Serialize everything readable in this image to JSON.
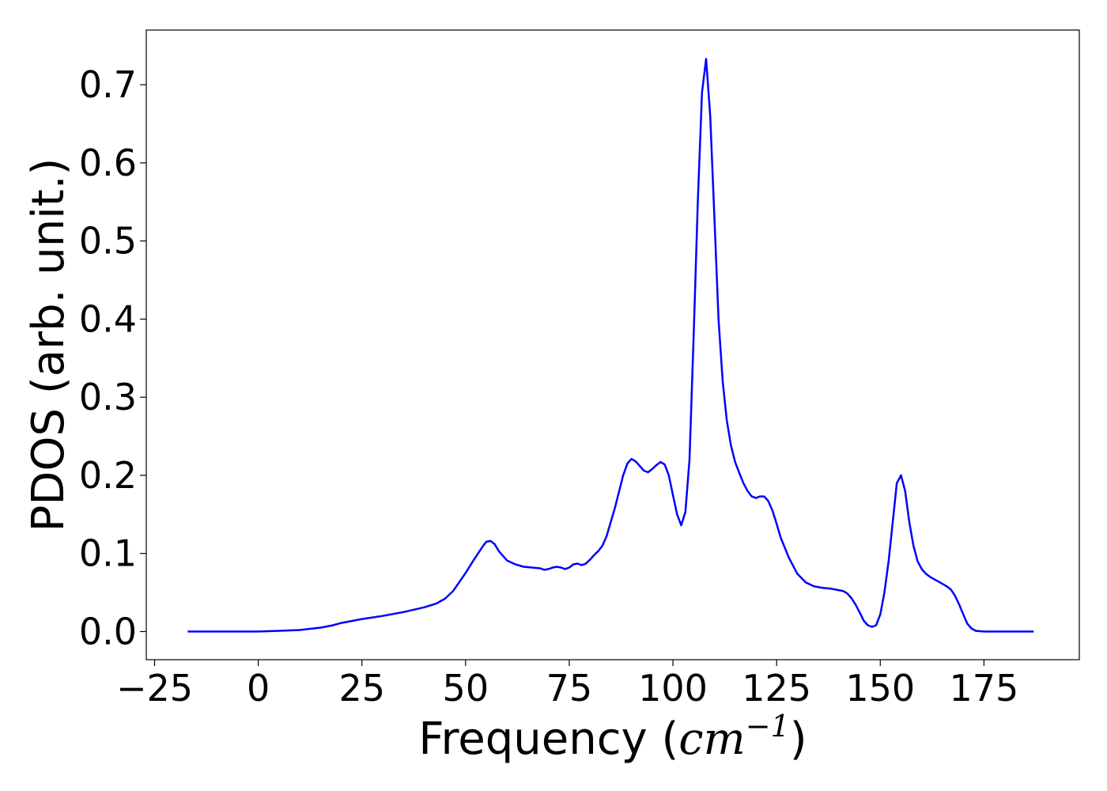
{
  "chart_data": {
    "type": "line",
    "title": "",
    "xlabel_text": "Frequency (",
    "xlabel_math": "cm",
    "xlabel_sup": "−1",
    "xlabel_close": ")",
    "ylabel": "PDOS (arb. unit.)",
    "xlim": [
      -27,
      198
    ],
    "ylim": [
      -0.036,
      0.77
    ],
    "xticks": [
      -25,
      0,
      25,
      50,
      75,
      100,
      125,
      150,
      175
    ],
    "xtick_labels": [
      "−25",
      "0",
      "25",
      "50",
      "75",
      "100",
      "125",
      "150",
      "175"
    ],
    "yticks": [
      0.0,
      0.1,
      0.2,
      0.3,
      0.4,
      0.5,
      0.6,
      0.7
    ],
    "ytick_labels": [
      "0.0",
      "0.1",
      "0.2",
      "0.3",
      "0.4",
      "0.5",
      "0.6",
      "0.7"
    ],
    "grid": false,
    "line_color": "#0000ff",
    "series": [
      {
        "x": [
          -17,
          0,
          5,
          10,
          15,
          18,
          20,
          25,
          30,
          35,
          40,
          43,
          45,
          47,
          50,
          52,
          53,
          54,
          55,
          56,
          57,
          58,
          60,
          62,
          64,
          66,
          68,
          69,
          70,
          71,
          72,
          73,
          74,
          75,
          76,
          77,
          78,
          79,
          80,
          81,
          82,
          83,
          84,
          86,
          88,
          89,
          90,
          91,
          92,
          93,
          94,
          95,
          96,
          97,
          98,
          99,
          100,
          101,
          102,
          103,
          104,
          105,
          106,
          107,
          108,
          109,
          110,
          111,
          112,
          113,
          114,
          115,
          116,
          117,
          118,
          119,
          120,
          121,
          122,
          123,
          124,
          125,
          126,
          128,
          130,
          132,
          134,
          136,
          138,
          140,
          141,
          142,
          143,
          144,
          145,
          146,
          147,
          148,
          149,
          150,
          151,
          152,
          153,
          154,
          155,
          156,
          157,
          158,
          159,
          160,
          161,
          162,
          164,
          166,
          167,
          168,
          169,
          170,
          171,
          172,
          173,
          175,
          180,
          187
        ],
        "y": [
          0.0,
          0.0,
          0.001,
          0.002,
          0.005,
          0.008,
          0.011,
          0.016,
          0.02,
          0.025,
          0.031,
          0.036,
          0.042,
          0.052,
          0.075,
          0.092,
          0.1,
          0.108,
          0.115,
          0.116,
          0.112,
          0.103,
          0.091,
          0.086,
          0.083,
          0.082,
          0.081,
          0.079,
          0.08,
          0.082,
          0.083,
          0.082,
          0.08,
          0.082,
          0.086,
          0.087,
          0.085,
          0.087,
          0.092,
          0.098,
          0.103,
          0.11,
          0.122,
          0.158,
          0.2,
          0.215,
          0.221,
          0.218,
          0.212,
          0.206,
          0.204,
          0.208,
          0.213,
          0.217,
          0.214,
          0.2,
          0.175,
          0.15,
          0.136,
          0.153,
          0.22,
          0.38,
          0.55,
          0.69,
          0.733,
          0.66,
          0.53,
          0.4,
          0.32,
          0.27,
          0.238,
          0.217,
          0.203,
          0.19,
          0.18,
          0.173,
          0.171,
          0.173,
          0.173,
          0.167,
          0.155,
          0.138,
          0.12,
          0.094,
          0.074,
          0.063,
          0.058,
          0.056,
          0.055,
          0.053,
          0.052,
          0.049,
          0.043,
          0.035,
          0.025,
          0.014,
          0.008,
          0.006,
          0.008,
          0.022,
          0.05,
          0.09,
          0.14,
          0.19,
          0.2,
          0.18,
          0.14,
          0.11,
          0.09,
          0.08,
          0.074,
          0.07,
          0.064,
          0.058,
          0.054,
          0.046,
          0.035,
          0.022,
          0.01,
          0.004,
          0.001,
          0.0,
          0.0,
          0.0
        ]
      }
    ]
  }
}
